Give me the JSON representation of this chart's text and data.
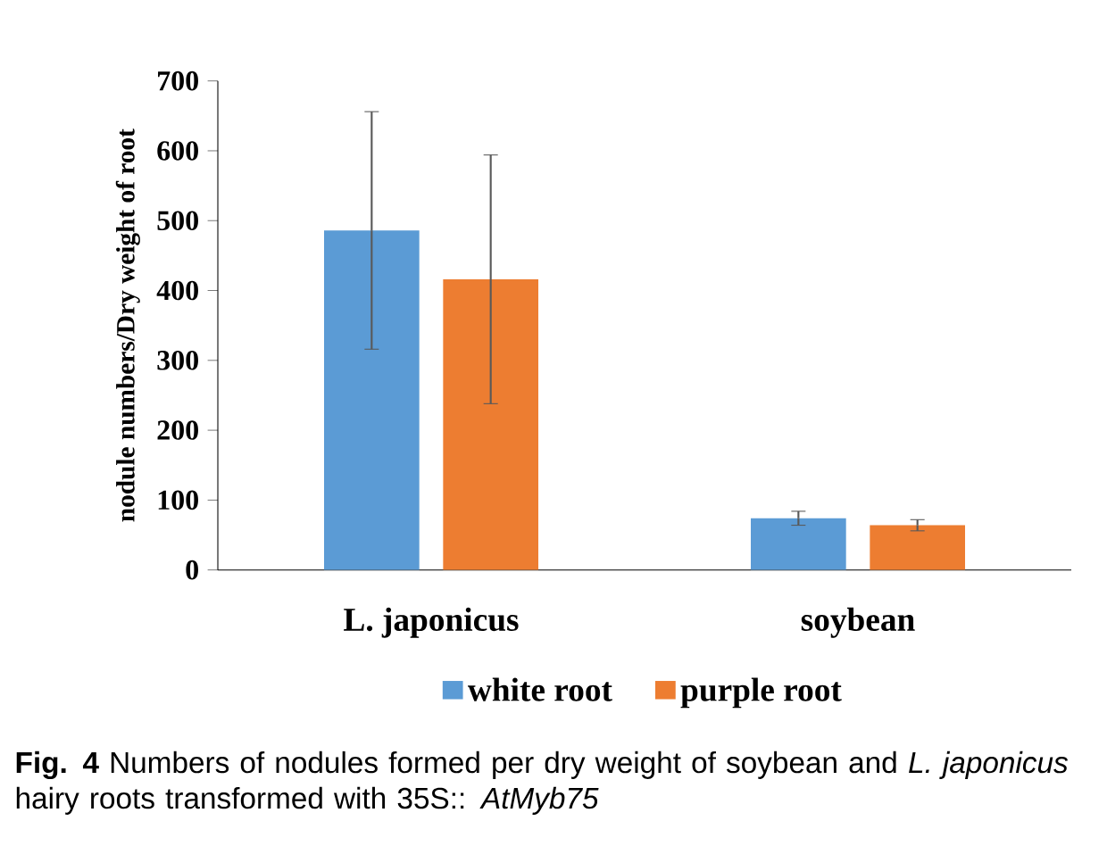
{
  "chart_data": {
    "type": "bar",
    "categories": [
      "L. japonicus",
      "soybean"
    ],
    "ylabel": "nodule numbers/Dry weight of root",
    "ylim": [
      0,
      700
    ],
    "yticks": [
      0,
      100,
      200,
      300,
      400,
      500,
      600,
      700
    ],
    "series": [
      {
        "name": "white root",
        "color": "#5b9bd5",
        "values": [
          486,
          74
        ],
        "errors": [
          170,
          10
        ]
      },
      {
        "name": "purple root",
        "color": "#ed7d31",
        "values": [
          416,
          64
        ],
        "errors": [
          178,
          8
        ]
      }
    ],
    "legend": "bottom",
    "annotations": [
      "**Fig. 4** Numbers of nodules formed per dry weight of soybean and *L. japonicus* hairy roots transformed with 35S:: *AtMyb75*"
    ]
  }
}
